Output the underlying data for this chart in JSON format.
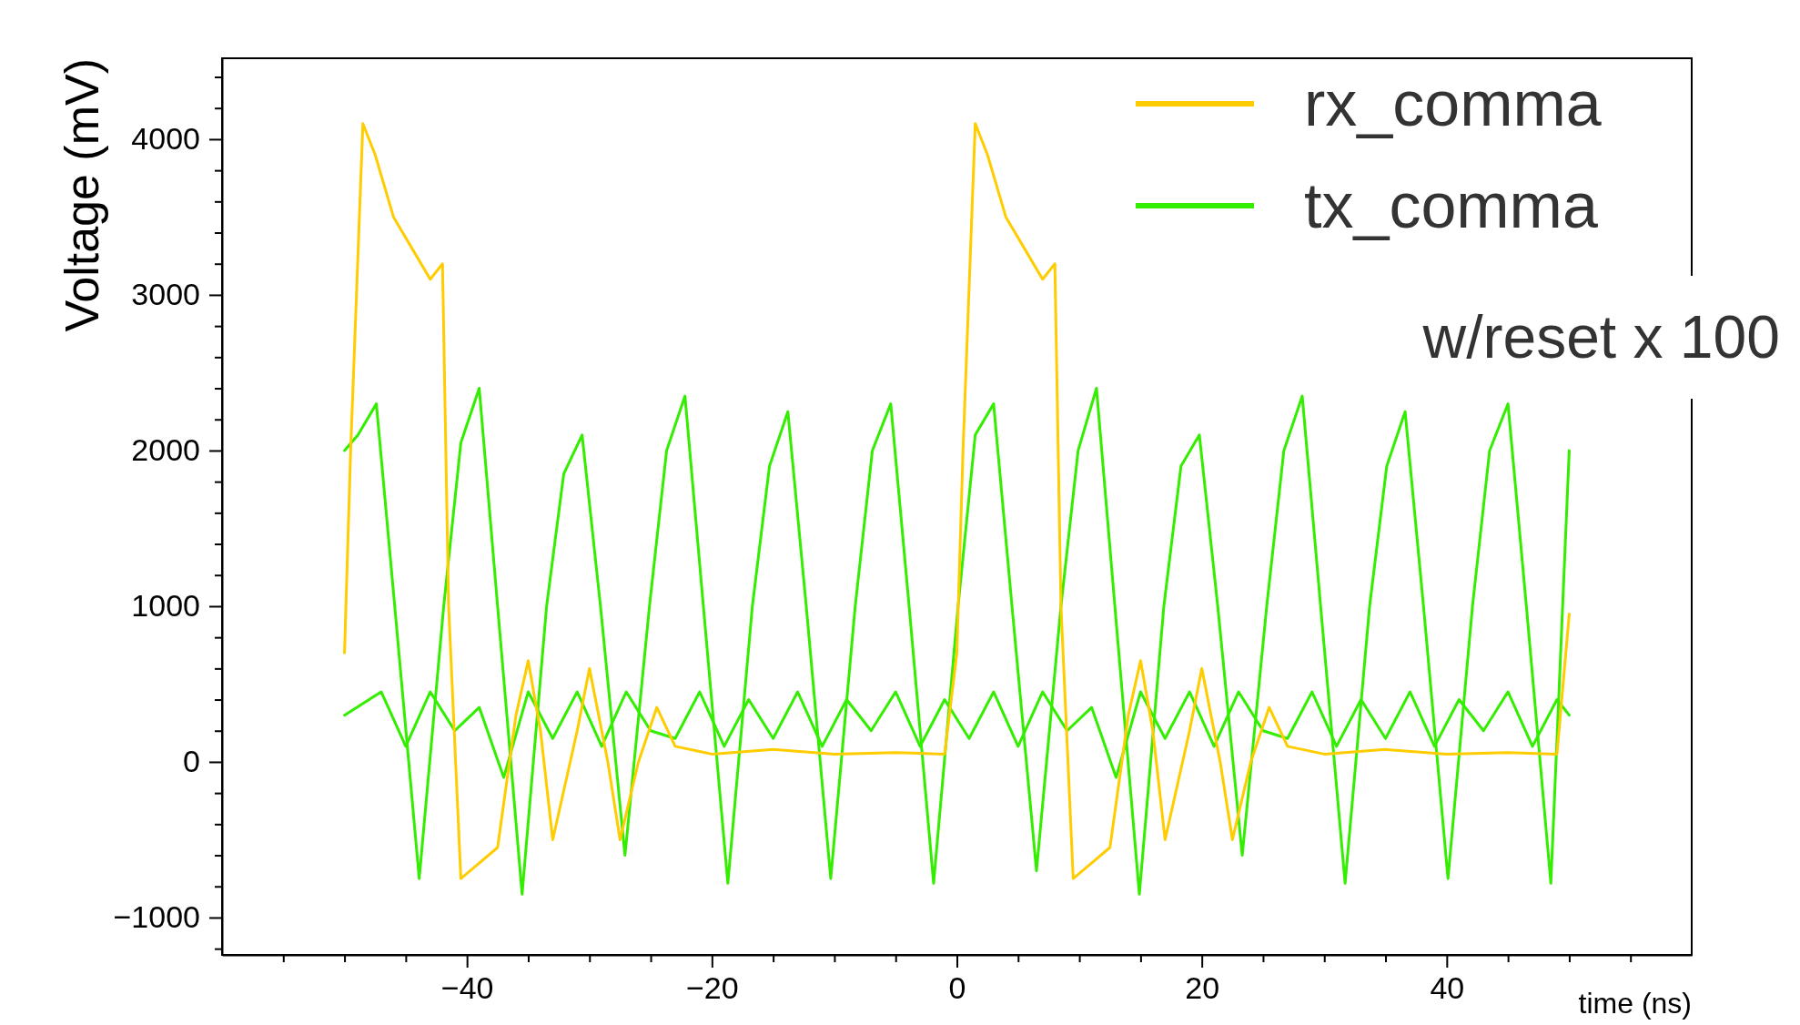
{
  "chart_data": {
    "type": "line",
    "xlabel": "time (ns)",
    "ylabel": "Voltage (mV)",
    "xlim": [
      -60,
      60
    ],
    "ylim": [
      -1240,
      4520
    ],
    "xticks": [
      {
        "value": -55,
        "label": null
      },
      {
        "value": -50,
        "label": null
      },
      {
        "value": -45,
        "label": null
      },
      {
        "value": -40,
        "label": "−40"
      },
      {
        "value": -35,
        "label": null
      },
      {
        "value": -30,
        "label": null
      },
      {
        "value": -25,
        "label": null
      },
      {
        "value": -20,
        "label": "−20"
      },
      {
        "value": -15,
        "label": null
      },
      {
        "value": -10,
        "label": null
      },
      {
        "value": -5,
        "label": null
      },
      0,
      {
        "value": 5,
        "label": null
      },
      {
        "value": 10,
        "label": null
      },
      {
        "value": 15,
        "label": null
      },
      20,
      {
        "value": 25,
        "label": null
      },
      {
        "value": 30,
        "label": null
      },
      {
        "value": 35,
        "label": null
      },
      40,
      {
        "value": 45,
        "label": null
      },
      {
        "value": 50,
        "label": null
      },
      {
        "value": 55,
        "label": null
      }
    ],
    "yticks": [
      {
        "value": -1200,
        "label": null
      },
      {
        "value": -1000,
        "label": "−1000"
      },
      {
        "value": -800,
        "label": null
      },
      {
        "value": -600,
        "label": null
      },
      {
        "value": -400,
        "label": null
      },
      {
        "value": -200,
        "label": null
      },
      0,
      {
        "value": 200,
        "label": null
      },
      {
        "value": 400,
        "label": null
      },
      {
        "value": 600,
        "label": null
      },
      {
        "value": 800,
        "label": null
      },
      1000,
      {
        "value": 1200,
        "label": null
      },
      {
        "value": 1400,
        "label": null
      },
      {
        "value": 1600,
        "label": null
      },
      {
        "value": 1800,
        "label": null
      },
      2000,
      {
        "value": 2200,
        "label": null
      },
      {
        "value": 2400,
        "label": null
      },
      {
        "value": 2600,
        "label": null
      },
      {
        "value": 2800,
        "label": null
      },
      3000,
      {
        "value": 3200,
        "label": null
      },
      {
        "value": 3400,
        "label": null
      },
      {
        "value": 3600,
        "label": null
      },
      {
        "value": 3800,
        "label": null
      },
      4000,
      {
        "value": 4200,
        "label": null
      },
      {
        "value": 4400,
        "label": null
      }
    ],
    "grid": false,
    "legend": "top right",
    "annotations": [
      "w/reset x 100"
    ],
    "series": [
      {
        "color": "#33ee00",
        "x": [
          -50,
          -47,
          -45,
          -43,
          -41,
          -39,
          -37,
          -35,
          -33,
          -31,
          -29,
          -27,
          -25,
          -23,
          -21,
          -19,
          -17,
          -15,
          -13,
          -11,
          -9,
          -7,
          -5,
          -3,
          -1,
          1,
          3,
          5,
          7,
          9,
          11,
          13,
          15,
          17,
          19,
          21,
          23,
          25,
          27,
          29,
          31,
          33,
          35,
          37,
          39,
          41,
          43,
          45,
          47,
          49,
          50
        ],
        "values": [
          300,
          450,
          100,
          450,
          200,
          350,
          -100,
          450,
          150,
          450,
          100,
          450,
          200,
          150,
          450,
          100,
          400,
          150,
          450,
          100,
          400,
          200,
          450,
          100,
          400,
          150,
          450,
          100,
          450,
          200,
          350,
          -100,
          450,
          150,
          450,
          100,
          450,
          200,
          150,
          450,
          100,
          400,
          150,
          450,
          100,
          400,
          200,
          450,
          100,
          400,
          300
        ]
      },
      {
        "name": "tx_comma",
        "color": "#33ee00",
        "x": [
          -50,
          -48.9,
          -47.4,
          -45.9,
          -43.9,
          -41.9,
          -40.5,
          -39,
          -37.5,
          -35.5,
          -33.5,
          -32.1,
          -30.6,
          -29.1,
          -27.1,
          -25.1,
          -23.7,
          -22.2,
          -20.7,
          -18.7,
          -16.7,
          -15.3,
          -13.8,
          -12.3,
          -10.3,
          -8.3,
          -6.9,
          -5.4,
          -3.9,
          -1.9,
          0.1,
          1.5,
          3,
          4.5,
          6.5,
          8.5,
          9.9,
          11.4,
          12.9,
          14.9,
          16.9,
          18.3,
          19.8,
          21.3,
          23.3,
          25.3,
          26.7,
          28.2,
          29.7,
          31.7,
          33.7,
          35.1,
          36.6,
          38.1,
          40.1,
          42.1,
          43.5,
          45,
          46.5,
          48.5,
          50
        ],
        "values": [
          2000,
          2100,
          2300,
          1000,
          -750,
          1000,
          2050,
          2400,
          1000,
          -850,
          1000,
          1850,
          2100,
          1000,
          -600,
          1000,
          2000,
          2350,
          1000,
          -780,
          1000,
          1900,
          2250,
          1000,
          -750,
          1000,
          2000,
          2300,
          1000,
          -780,
          1000,
          2100,
          2300,
          1000,
          -700,
          1000,
          2000,
          2400,
          1000,
          -850,
          1000,
          1900,
          2100,
          1000,
          -600,
          1000,
          2000,
          2350,
          1000,
          -780,
          1000,
          1900,
          2250,
          1000,
          -750,
          1000,
          2000,
          2300,
          1000,
          -780,
          2000
        ]
      },
      {
        "name": "rx_comma",
        "color": "#ffcc00",
        "x": [
          -50,
          -49.5,
          -48.5,
          -47.5,
          -46,
          -44.5,
          -43,
          -42,
          -41.5,
          -40.5,
          -39,
          -37.5,
          -36,
          -35,
          -34,
          -33,
          -31,
          -30,
          -28.5,
          -27.5,
          -26,
          -24.5,
          -23,
          -20,
          -15,
          -10,
          -5,
          -1,
          0,
          0.5,
          1.5,
          2.5,
          4,
          5.5,
          7,
          8,
          8.5,
          9.5,
          11,
          12.5,
          14,
          15,
          16,
          17,
          19,
          20,
          21.5,
          22.5,
          24,
          25.5,
          27,
          30,
          35,
          40,
          45,
          49,
          50
        ],
        "values": [
          700,
          2000,
          4100,
          3900,
          3500,
          3300,
          3100,
          3200,
          1000,
          -750,
          -650,
          -550,
          300,
          650,
          200,
          -500,
          200,
          600,
          0,
          -500,
          0,
          350,
          100,
          50,
          80,
          50,
          60,
          50,
          700,
          2000,
          4100,
          3900,
          3500,
          3300,
          3100,
          3200,
          1000,
          -750,
          -650,
          -550,
          300,
          650,
          200,
          -500,
          200,
          600,
          0,
          -500,
          0,
          350,
          100,
          50,
          80,
          50,
          60,
          50,
          950
        ]
      }
    ]
  }
}
